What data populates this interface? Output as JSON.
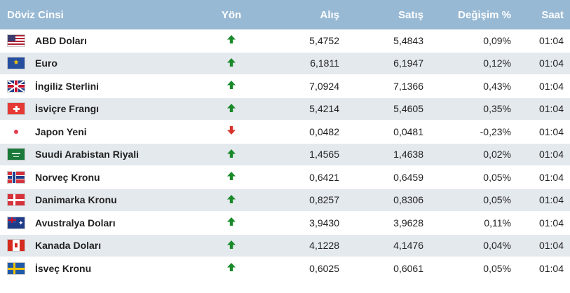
{
  "header": {
    "currency": "Döviz Cinsi",
    "direction": "Yön",
    "buy": "Alış",
    "sell": "Satış",
    "change": "Değişim %",
    "time": "Saat"
  },
  "colors": {
    "header_bg": "#98b9d4",
    "row_alt_bg": "#e4e9ee",
    "up_arrow": "#1a8a2a",
    "down_arrow": "#d9322b"
  },
  "rows": [
    {
      "flag": "flag-usa",
      "name": "ABD Doları",
      "direction": "up",
      "buy": "5,4752",
      "sell": "5,4843",
      "change": "0,09%",
      "time": "01:04"
    },
    {
      "flag": "flag-eu",
      "name": "Euro",
      "direction": "up",
      "buy": "6,1811",
      "sell": "6,1947",
      "change": "0,12%",
      "time": "01:04"
    },
    {
      "flag": "flag-uk",
      "name": "İngiliz Sterlini",
      "direction": "up",
      "buy": "7,0924",
      "sell": "7,1366",
      "change": "0,43%",
      "time": "01:04"
    },
    {
      "flag": "flag-switzerland",
      "name": "İsviçre Frangı",
      "direction": "up",
      "buy": "5,4214",
      "sell": "5,4605",
      "change": "0,35%",
      "time": "01:04"
    },
    {
      "flag": "flag-japan",
      "name": "Japon Yeni",
      "direction": "down",
      "buy": "0,0482",
      "sell": "0,0481",
      "change": "-0,23%",
      "time": "01:04"
    },
    {
      "flag": "flag-saudi-arabia",
      "name": "Suudi Arabistan Riyali",
      "direction": "up",
      "buy": "1,4565",
      "sell": "1,4638",
      "change": "0,02%",
      "time": "01:04"
    },
    {
      "flag": "flag-norway",
      "name": "Norveç Kronu",
      "direction": "up",
      "buy": "0,6421",
      "sell": "0,6459",
      "change": "0,05%",
      "time": "01:04"
    },
    {
      "flag": "flag-denmark",
      "name": "Danimarka Kronu",
      "direction": "up",
      "buy": "0,8257",
      "sell": "0,8306",
      "change": "0,05%",
      "time": "01:04"
    },
    {
      "flag": "flag-australia",
      "name": "Avustralya Doları",
      "direction": "up",
      "buy": "3,9430",
      "sell": "3,9628",
      "change": "0,11%",
      "time": "01:04"
    },
    {
      "flag": "flag-canada",
      "name": "Kanada Doları",
      "direction": "up",
      "buy": "4,1228",
      "sell": "4,1476",
      "change": "0,04%",
      "time": "01:04"
    },
    {
      "flag": "flag-sweden",
      "name": "İsveç Kronu",
      "direction": "up",
      "buy": "0,6025",
      "sell": "0,6061",
      "change": "0,05%",
      "time": "01:04"
    }
  ]
}
